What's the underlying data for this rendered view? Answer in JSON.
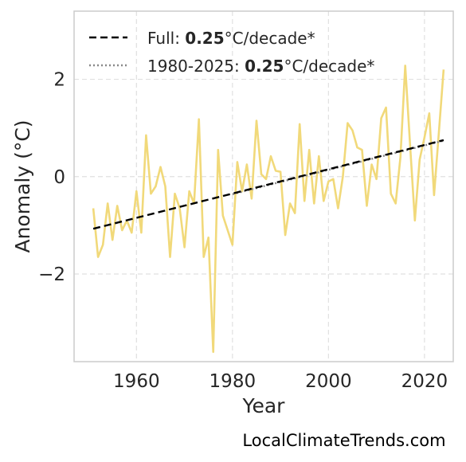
{
  "chart_data": {
    "type": "line",
    "title": "",
    "xlabel": "Year",
    "ylabel": "Anomaly (°C)",
    "xlim": [
      1947,
      2026
    ],
    "ylim": [
      -3.8,
      3.4
    ],
    "xticks": [
      1960,
      1980,
      2000,
      2020
    ],
    "yticks": [
      -2,
      0,
      2
    ],
    "ytick_labels": [
      "−2",
      "0",
      "2"
    ],
    "grid": true,
    "legend_position": "top-left",
    "colors": {
      "anomaly": "#f1d97a",
      "full_trend": "#000000",
      "recent_trend": "#888888",
      "grid": "#e0e0e0",
      "frame": "#cccccc"
    },
    "x": [
      1951,
      1952,
      1953,
      1954,
      1955,
      1956,
      1957,
      1958,
      1959,
      1960,
      1961,
      1962,
      1963,
      1964,
      1965,
      1966,
      1967,
      1968,
      1969,
      1970,
      1971,
      1972,
      1973,
      1974,
      1975,
      1976,
      1977,
      1978,
      1979,
      1980,
      1981,
      1982,
      1983,
      1984,
      1985,
      1986,
      1987,
      1988,
      1989,
      1990,
      1991,
      1992,
      1993,
      1994,
      1995,
      1996,
      1997,
      1998,
      1999,
      2000,
      2001,
      2002,
      2003,
      2004,
      2005,
      2006,
      2007,
      2008,
      2009,
      2010,
      2011,
      2012,
      2013,
      2014,
      2015,
      2016,
      2017,
      2018,
      2019,
      2020,
      2021,
      2022,
      2023,
      2024
    ],
    "series": [
      {
        "values": [
          -0.65,
          -1.65,
          -1.4,
          -0.55,
          -1.3,
          -0.6,
          -1.1,
          -0.9,
          -1.15,
          -0.3,
          -1.15,
          0.85,
          -0.35,
          -0.2,
          0.2,
          -0.2,
          -1.65,
          -0.35,
          -0.65,
          -1.45,
          -0.3,
          -0.55,
          1.18,
          -1.65,
          -1.25,
          -3.6,
          0.55,
          -0.8,
          -1.1,
          -1.4,
          0.3,
          -0.3,
          0.25,
          -0.45,
          1.15,
          0.05,
          -0.05,
          0.42,
          0.12,
          0.1,
          -1.2,
          -0.55,
          -0.75,
          1.08,
          -0.5,
          0.55,
          -0.55,
          0.42,
          -0.5,
          -0.1,
          -0.05,
          -0.65,
          0.0,
          1.1,
          0.95,
          0.6,
          0.55,
          -0.6,
          0.25,
          -0.05,
          1.2,
          1.42,
          -0.35,
          -0.55,
          0.4,
          2.28,
          0.65,
          -0.9,
          0.35,
          0.8,
          1.3,
          -0.38,
          0.9,
          2.2
        ]
      }
    ],
    "trend_lines": [
      {
        "name": "Full",
        "x": [
          1951,
          2024
        ],
        "y": [
          -1.07,
          0.75
        ]
      },
      {
        "name": "1980-2025",
        "x": [
          1980,
          2024
        ],
        "y": [
          -0.36,
          0.74
        ]
      }
    ],
    "legend": [
      {
        "prefix": "Full: ",
        "value": "0.25",
        "suffix": "°C/decade*"
      },
      {
        "prefix": "1980-2025: ",
        "value": "0.25",
        "suffix": "°C/decade*"
      }
    ]
  },
  "source_label": "LocalClimateTrends.com"
}
